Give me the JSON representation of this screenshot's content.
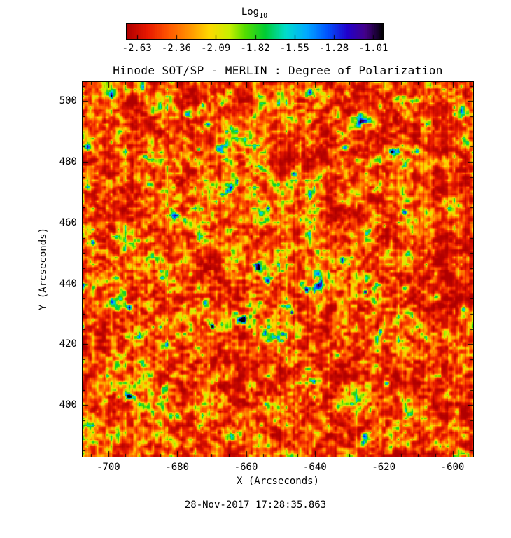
{
  "chart_data": {
    "type": "heatmap",
    "title": "Hinode SOT/SP - MERLIN : Degree of Polarization",
    "xlabel": "X (Arcseconds)",
    "ylabel": "Y (Arcseconds)",
    "timestamp": "28-Nov-2017 17:28:35.863",
    "x_range": [
      -707.5,
      -594.0
    ],
    "y_range": [
      383.0,
      506.3
    ],
    "x_ticks": [
      -700,
      -680,
      -660,
      -640,
      -620,
      -600
    ],
    "y_ticks": [
      400,
      420,
      440,
      460,
      480,
      500
    ],
    "minor_tick_step": 5,
    "grid": false,
    "value_range_log10": [
      -2.7,
      -0.94
    ],
    "background_log10_dop": -2.45,
    "colorbar": {
      "label_main": "Log",
      "label_sub": "10",
      "position": "top",
      "ticks": [
        -2.63,
        -2.36,
        -2.09,
        -1.82,
        -1.55,
        -1.28,
        -1.01
      ],
      "vmin": -2.7,
      "vmax": -0.94,
      "stops": [
        {
          "t": 0.0,
          "color": "#b00000"
        },
        {
          "t": 0.08,
          "color": "#e81800"
        },
        {
          "t": 0.16,
          "color": "#ff5500"
        },
        {
          "t": 0.25,
          "color": "#ff9900"
        },
        {
          "t": 0.32,
          "color": "#ffd800"
        },
        {
          "t": 0.4,
          "color": "#c8f000"
        },
        {
          "t": 0.46,
          "color": "#55dd00"
        },
        {
          "t": 0.54,
          "color": "#00cc33"
        },
        {
          "t": 0.62,
          "color": "#00ddcc"
        },
        {
          "t": 0.7,
          "color": "#00aaff"
        },
        {
          "t": 0.78,
          "color": "#0055ff"
        },
        {
          "t": 0.86,
          "color": "#2200cc"
        },
        {
          "t": 0.93,
          "color": "#440088"
        },
        {
          "t": 1.0,
          "color": "#000000"
        }
      ]
    },
    "features": [
      {
        "x": -626,
        "y": 495,
        "log10": -1.35,
        "s": 4.0
      },
      {
        "x": -621,
        "y": 499,
        "log10": -1.5,
        "s": 2.5
      },
      {
        "x": -628,
        "y": 492,
        "log10": -1.45,
        "s": 2.5
      },
      {
        "x": -632,
        "y": 485,
        "log10": -1.2,
        "s": 1.8
      },
      {
        "x": -618,
        "y": 484,
        "log10": -1.7,
        "s": 1.5
      },
      {
        "x": -706,
        "y": 485,
        "log10": -1.6,
        "s": 2.0
      },
      {
        "x": -706,
        "y": 472,
        "log10": -1.5,
        "s": 2.0
      },
      {
        "x": -695,
        "y": 484,
        "log10": -1.7,
        "s": 1.5
      },
      {
        "x": -705,
        "y": 454,
        "log10": -1.45,
        "s": 2.2
      },
      {
        "x": -699,
        "y": 434,
        "log10": -1.5,
        "s": 2.0
      },
      {
        "x": -694,
        "y": 432,
        "log10": -1.3,
        "s": 1.6
      },
      {
        "x": -683,
        "y": 420,
        "log10": -1.5,
        "s": 2.0
      },
      {
        "x": -670,
        "y": 426,
        "log10": -1.2,
        "s": 1.4
      },
      {
        "x": -672,
        "y": 434,
        "log10": -1.6,
        "s": 2.0
      },
      {
        "x": -654,
        "y": 441,
        "log10": -1.3,
        "s": 2.0
      },
      {
        "x": -644,
        "y": 440,
        "log10": -1.35,
        "s": 2.0
      },
      {
        "x": -614,
        "y": 439,
        "log10": -1.25,
        "s": 2.0
      },
      {
        "x": -639,
        "y": 408,
        "log10": -1.5,
        "s": 2.2
      },
      {
        "x": -652,
        "y": 395,
        "log10": -1.55,
        "s": 1.8
      },
      {
        "x": -626,
        "y": 388,
        "log10": -1.25,
        "s": 3.0
      },
      {
        "x": -619,
        "y": 386,
        "log10": -1.45,
        "s": 2.0
      },
      {
        "x": -599,
        "y": 398,
        "log10": -1.6,
        "s": 1.8
      },
      {
        "x": -597,
        "y": 432,
        "log10": -1.4,
        "s": 2.0
      },
      {
        "x": -668,
        "y": 502,
        "log10": -1.6,
        "s": 1.8
      },
      {
        "x": -671,
        "y": 493,
        "log10": -1.65,
        "s": 1.6
      },
      {
        "x": -646,
        "y": 476,
        "log10": -1.7,
        "s": 1.5
      },
      {
        "x": -621,
        "y": 424,
        "log10": -1.55,
        "s": 1.8
      },
      {
        "x": -614,
        "y": 464,
        "log10": -1.65,
        "s": 1.5
      }
    ]
  }
}
